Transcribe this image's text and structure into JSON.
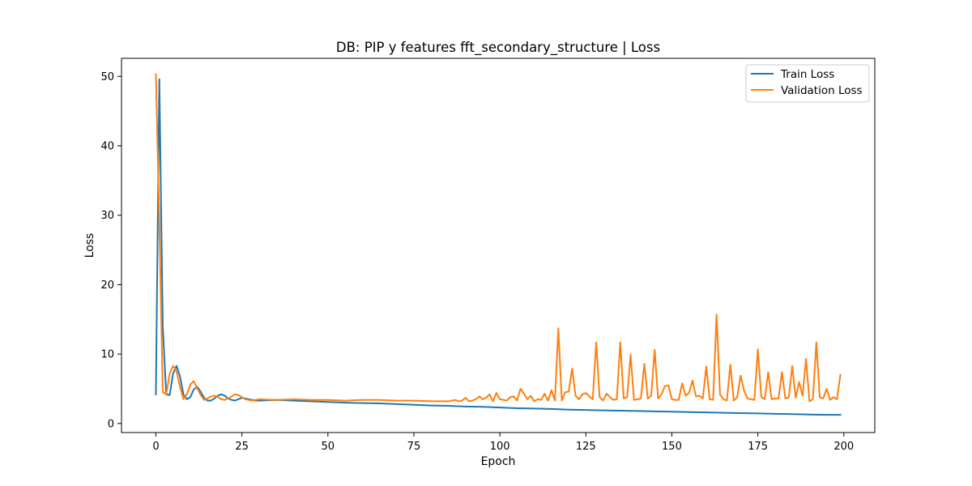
{
  "chart_data": {
    "type": "line",
    "title": "DB: PIP y features fft_secondary_structure | Loss",
    "xlabel": "Epoch",
    "ylabel": "Loss",
    "xlim": [
      -10,
      209
    ],
    "ylim": [
      -1.3,
      52.6
    ],
    "xticks": [
      0,
      25,
      50,
      75,
      100,
      125,
      150,
      175,
      200
    ],
    "yticks": [
      0,
      10,
      20,
      30,
      40,
      50
    ],
    "grid": false,
    "legend_position": "top-right",
    "series": [
      {
        "name": "Train Loss",
        "color": "#1f77b4",
        "x": [
          0,
          1,
          2,
          3,
          4,
          5,
          6,
          7,
          8,
          9,
          10,
          11,
          12,
          13,
          14,
          15,
          16,
          17,
          18,
          19,
          20,
          21,
          22,
          23,
          24,
          25,
          26,
          27,
          28,
          29,
          30,
          35,
          40,
          45,
          50,
          55,
          60,
          65,
          70,
          75,
          80,
          85,
          90,
          95,
          100,
          105,
          110,
          115,
          120,
          125,
          130,
          135,
          140,
          145,
          150,
          155,
          160,
          165,
          170,
          175,
          180,
          185,
          190,
          195,
          199
        ],
        "y": [
          4.2,
          49.6,
          14,
          4.2,
          4.1,
          7.2,
          8.3,
          6.8,
          4.2,
          3.5,
          3.8,
          4.9,
          5.3,
          4.6,
          3.7,
          3.3,
          3.3,
          3.6,
          4.0,
          4.2,
          4.0,
          3.6,
          3.4,
          3.3,
          3.5,
          3.7,
          3.6,
          3.5,
          3.4,
          3.3,
          3.3,
          3.4,
          3.3,
          3.2,
          3.1,
          3.0,
          2.95,
          2.9,
          2.8,
          2.7,
          2.6,
          2.55,
          2.45,
          2.4,
          2.3,
          2.2,
          2.15,
          2.1,
          2.0,
          1.95,
          1.9,
          1.85,
          1.8,
          1.75,
          1.7,
          1.65,
          1.6,
          1.55,
          1.5,
          1.45,
          1.4,
          1.35,
          1.3,
          1.25,
          1.25
        ]
      },
      {
        "name": "Validation Loss",
        "color": "#ff7f0e",
        "x": [
          0,
          1,
          2,
          3,
          4,
          5,
          6,
          7,
          8,
          9,
          10,
          11,
          12,
          13,
          14,
          15,
          16,
          17,
          18,
          19,
          20,
          21,
          22,
          23,
          24,
          25,
          26,
          27,
          28,
          29,
          30,
          35,
          40,
          45,
          50,
          55,
          60,
          65,
          70,
          75,
          80,
          85,
          87,
          88,
          89,
          90,
          91,
          92,
          93,
          94,
          95,
          96,
          97,
          98,
          99,
          100,
          101,
          102,
          103,
          104,
          105,
          106,
          107,
          108,
          109,
          110,
          111,
          112,
          113,
          114,
          115,
          116,
          117,
          118,
          119,
          120,
          121,
          122,
          123,
          124,
          125,
          126,
          127,
          128,
          129,
          130,
          131,
          132,
          133,
          134,
          135,
          136,
          137,
          138,
          139,
          140,
          141,
          142,
          143,
          144,
          145,
          146,
          147,
          148,
          149,
          150,
          151,
          152,
          153,
          154,
          155,
          156,
          157,
          158,
          159,
          160,
          161,
          162,
          163,
          164,
          165,
          166,
          167,
          168,
          169,
          170,
          171,
          172,
          173,
          174,
          175,
          176,
          177,
          178,
          179,
          180,
          181,
          182,
          183,
          184,
          185,
          186,
          187,
          188,
          189,
          190,
          191,
          192,
          193,
          194,
          195,
          196,
          197,
          198,
          199
        ],
        "y": [
          50.3,
          29,
          4.5,
          4.2,
          7.2,
          8.3,
          7.5,
          5.3,
          3.5,
          4.2,
          5.6,
          6.1,
          5.1,
          4.1,
          3.4,
          3.6,
          3.9,
          4.0,
          3.8,
          3.5,
          3.4,
          3.6,
          3.9,
          4.2,
          4.1,
          3.8,
          3.5,
          3.4,
          3.3,
          3.4,
          3.5,
          3.4,
          3.5,
          3.4,
          3.4,
          3.3,
          3.4,
          3.4,
          3.3,
          3.3,
          3.2,
          3.2,
          3.4,
          3.2,
          3.3,
          3.7,
          3.2,
          3.3,
          3.5,
          3.9,
          3.5,
          3.7,
          4.2,
          3.2,
          4.4,
          3.5,
          3.4,
          3.3,
          3.8,
          3.9,
          3.3,
          5.0,
          4.3,
          3.5,
          4.0,
          3.2,
          3.5,
          3.4,
          4.3,
          3.3,
          4.8,
          3.3,
          13.7,
          3.3,
          4.5,
          4.6,
          7.9,
          4.0,
          3.5,
          4.2,
          4.4,
          3.9,
          3.5,
          11.7,
          3.8,
          3.3,
          4.3,
          3.8,
          3.4,
          3.5,
          11.7,
          3.6,
          3.8,
          9.9,
          3.4,
          3.5,
          3.6,
          8.6,
          3.6,
          4.0,
          10.6,
          3.6,
          4.2,
          5.4,
          5.5,
          3.5,
          3.4,
          3.4,
          5.8,
          4.0,
          4.4,
          6.2,
          3.9,
          4.0,
          3.6,
          8.2,
          3.5,
          3.4,
          15.7,
          4.2,
          3.5,
          3.3,
          8.5,
          3.3,
          3.8,
          6.9,
          4.7,
          3.6,
          3.5,
          3.4,
          10.7,
          3.8,
          3.5,
          7.4,
          3.5,
          3.6,
          3.6,
          7.4,
          3.6,
          3.8,
          8.3,
          3.7,
          6.0,
          4.0,
          9.3,
          3.2,
          3.5,
          11.7,
          3.8,
          3.6,
          5.0,
          3.4,
          3.8,
          3.5,
          7.0
        ]
      }
    ]
  }
}
